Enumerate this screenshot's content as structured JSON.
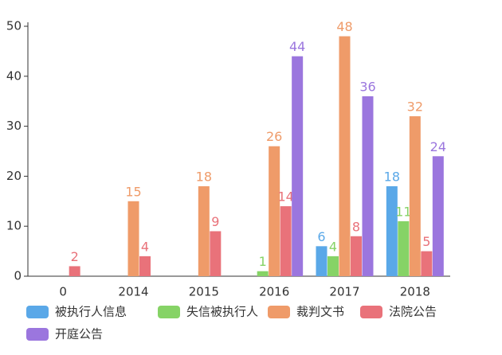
{
  "chart_data": {
    "type": "bar",
    "categories": [
      "0",
      "2014",
      "2015",
      "2016",
      "2017",
      "2018"
    ],
    "series": [
      {
        "name": "被执行人信息",
        "color": "#5aa8e8",
        "values": [
          null,
          null,
          null,
          null,
          6,
          18
        ]
      },
      {
        "name": "失信被执行人",
        "color": "#86d366",
        "values": [
          null,
          null,
          null,
          1,
          4,
          11
        ]
      },
      {
        "name": "裁判文书",
        "color": "#ef9b69",
        "values": [
          null,
          15,
          18,
          26,
          48,
          32
        ]
      },
      {
        "name": "法院公告",
        "color": "#e9727a",
        "values": [
          2,
          4,
          9,
          14,
          8,
          5
        ]
      },
      {
        "name": "开庭公告",
        "color": "#9b76de",
        "values": [
          null,
          null,
          null,
          44,
          36,
          24
        ]
      }
    ],
    "ylim": [
      0,
      50
    ],
    "yticks": [
      0,
      10,
      20,
      30,
      40,
      50
    ],
    "grid": false
  }
}
